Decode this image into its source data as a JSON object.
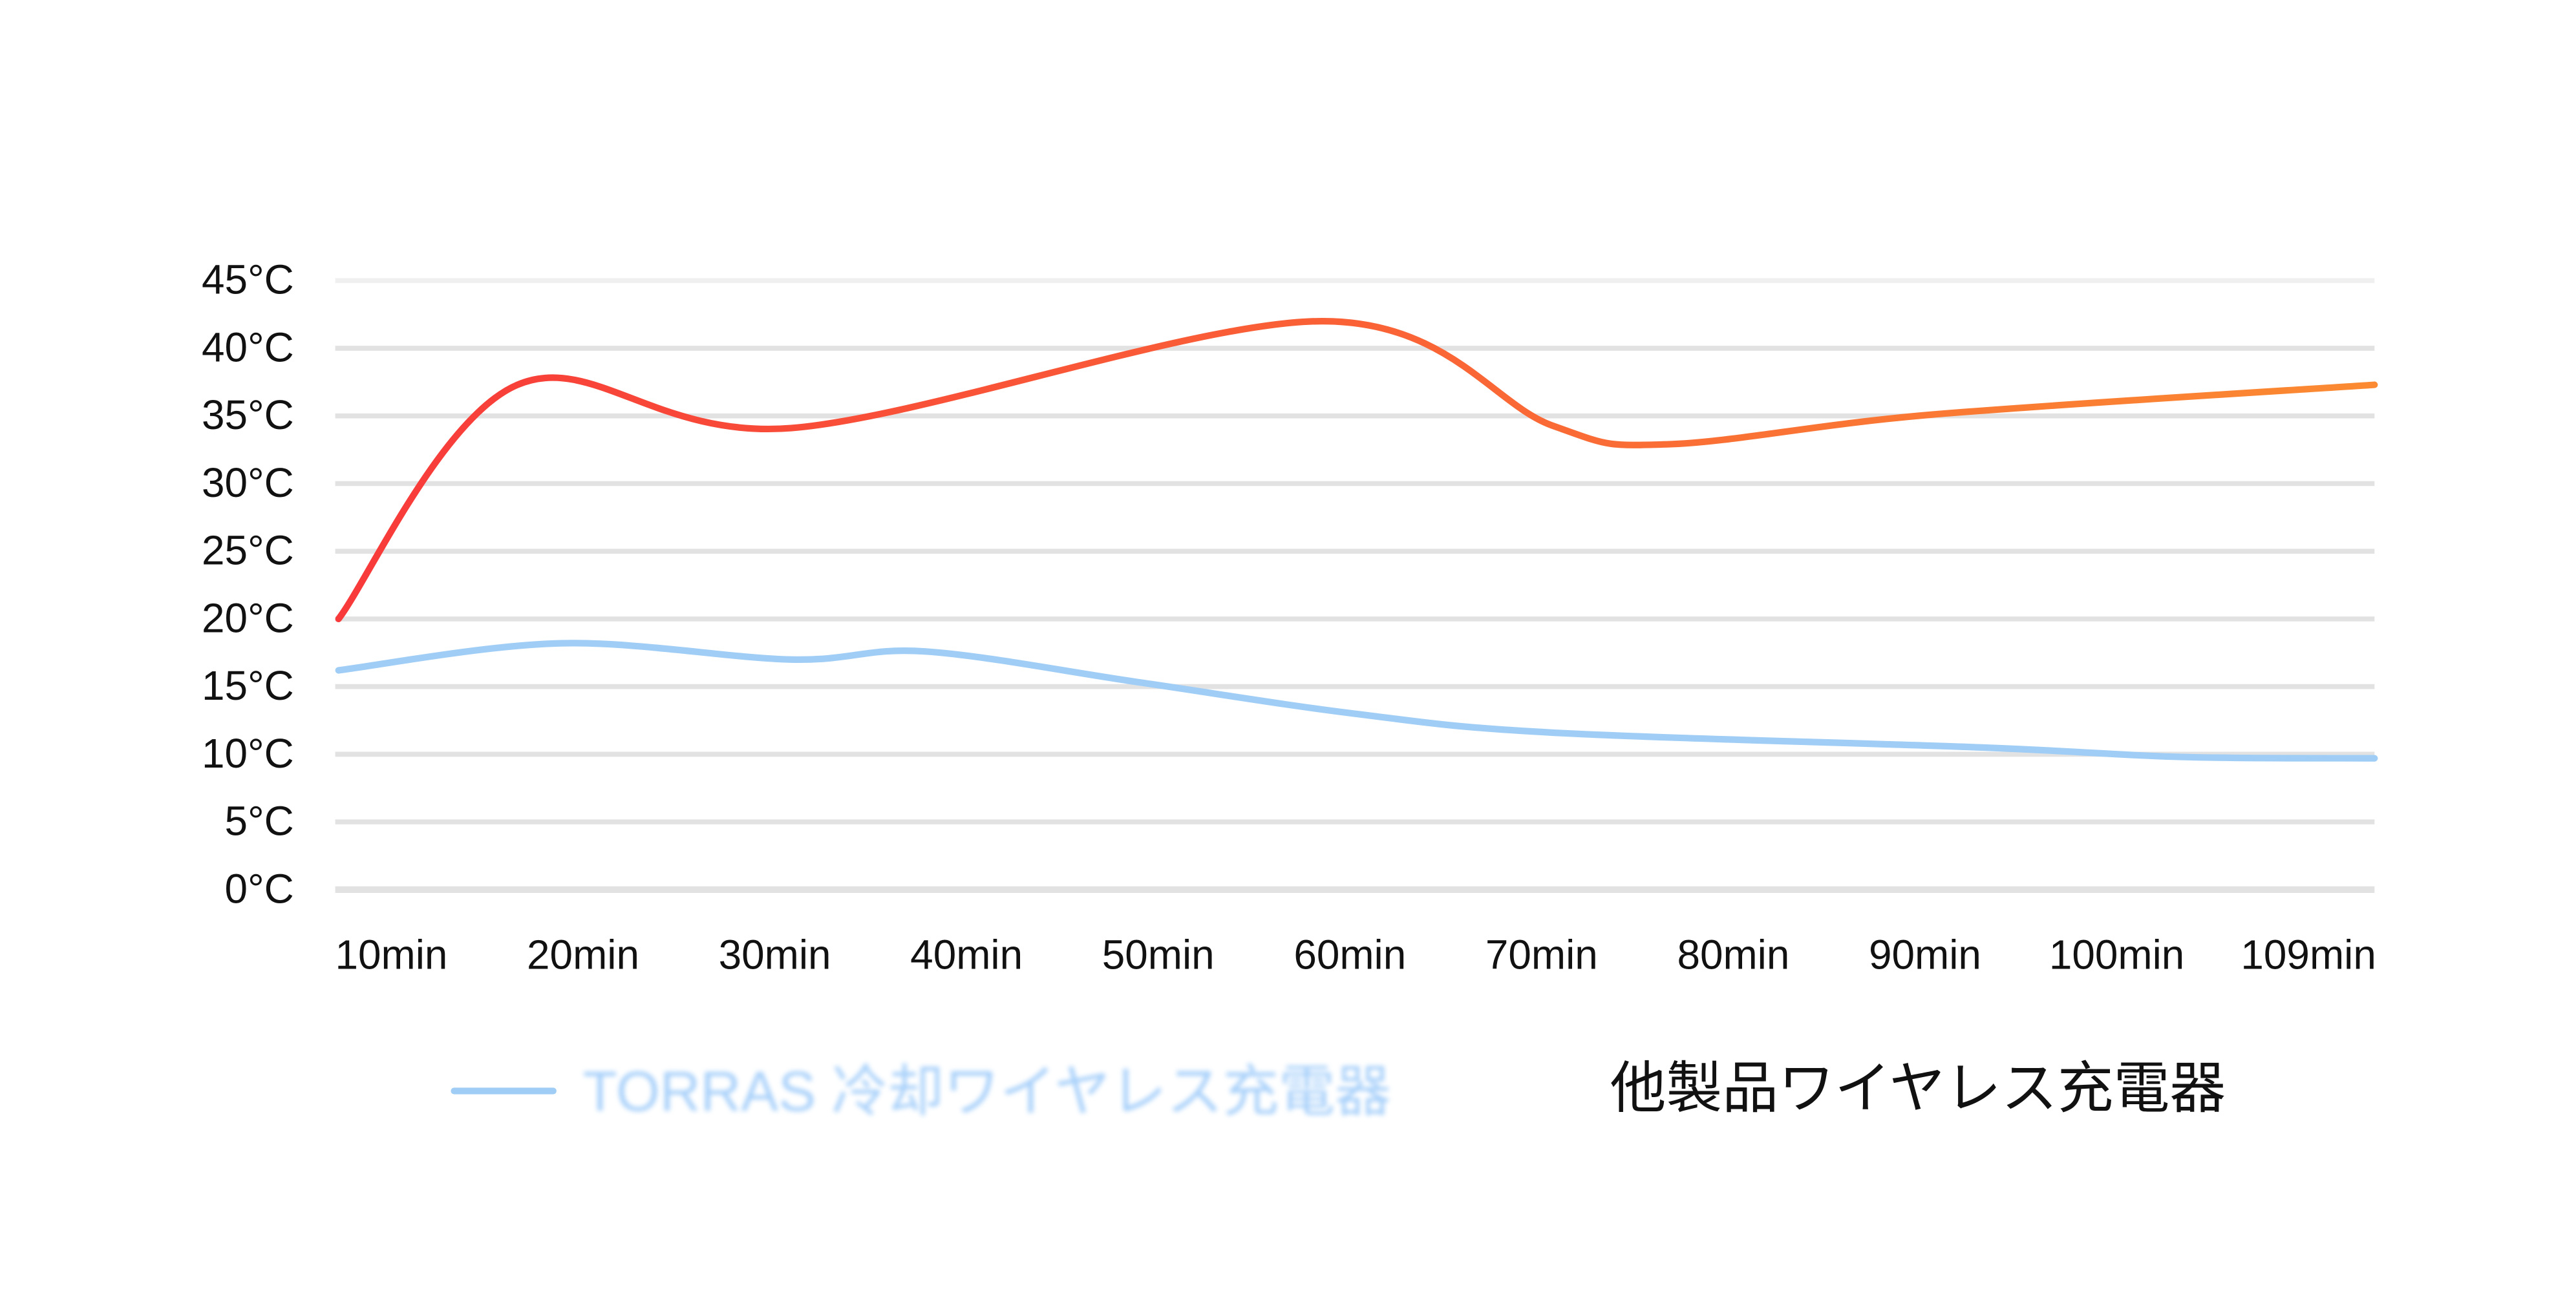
{
  "chart_data": {
    "type": "line",
    "title": "",
    "xlabel": "",
    "ylabel": "",
    "x_ticks": [
      "10min",
      "20min",
      "30min",
      "40min",
      "50min",
      "60min",
      "70min",
      "80min",
      "90min",
      "100min",
      "109min"
    ],
    "y_ticks": [
      "45°C",
      "40°C",
      "35°C",
      "30°C",
      "25°C",
      "20°C",
      "15°C",
      "10°C",
      "5°C",
      "0°C"
    ],
    "xlim": [
      10,
      109
    ],
    "ylim": [
      0,
      45
    ],
    "grid": "horizontal",
    "legend_position": "bottom",
    "series": [
      {
        "name": "TORRAS 冷却ワイヤレス充電器",
        "color": "#9fcdf5",
        "points": [
          [
            10,
            16.2
          ],
          [
            20.8,
            18.2
          ],
          [
            32,
            17.0
          ],
          [
            38.5,
            17.6
          ],
          [
            49,
            15.3
          ],
          [
            59.4,
            13.0
          ],
          [
            69,
            11.6
          ],
          [
            89.9,
            10.5
          ],
          [
            99.6,
            9.8
          ],
          [
            109,
            9.7
          ]
        ]
      },
      {
        "name": "他製品ワイヤレス充電器",
        "color": "#f83a3a",
        "color_end": "#fb8a32",
        "points": [
          [
            10,
            20.0
          ],
          [
            18.7,
            37.3
          ],
          [
            32,
            34.1
          ],
          [
            57.8,
            42.0
          ],
          [
            69,
            34.3
          ],
          [
            74.6,
            32.9
          ],
          [
            87.5,
            35.1
          ],
          [
            109,
            37.3
          ]
        ]
      }
    ]
  }
}
